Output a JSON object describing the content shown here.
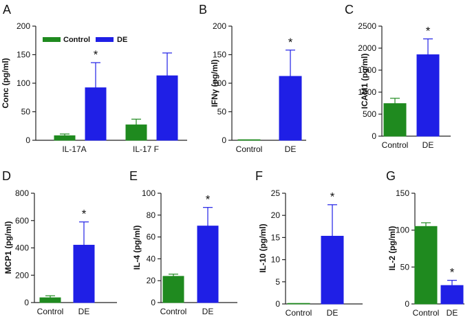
{
  "colors": {
    "control": "#1f8a1f",
    "de": "#1f1fe6"
  },
  "legend": {
    "control_label": "Control",
    "de_label": "DE"
  },
  "chart_data": [
    {
      "panel": "A",
      "type": "bar",
      "ylabel": "Conc (pg/ml)",
      "ylim": [
        0,
        200
      ],
      "yticks": [
        0,
        50,
        100,
        150,
        200
      ],
      "categories": [
        "IL-17A",
        "IL-17 F"
      ],
      "series": [
        {
          "name": "Control",
          "values": [
            8,
            27
          ],
          "errors": [
            3,
            10
          ]
        },
        {
          "name": "DE",
          "values": [
            92,
            113
          ],
          "errors": [
            44,
            40
          ]
        }
      ],
      "annotations": [
        {
          "text": "*",
          "category": 0,
          "series": 1
        }
      ]
    },
    {
      "panel": "B",
      "type": "bar",
      "ylabel": "IFNγ (pg/ml)",
      "ylim": [
        0,
        200
      ],
      "yticks": [
        0,
        50,
        100,
        150,
        200
      ],
      "categories": [
        "Control",
        "DE"
      ],
      "values": [
        1,
        112
      ],
      "errors": [
        0,
        46
      ],
      "annotations": [
        {
          "text": "*",
          "index": 1
        }
      ]
    },
    {
      "panel": "C",
      "type": "bar",
      "ylabel": "ICAM1 (pg/ml)",
      "ylim": [
        0,
        2500
      ],
      "yticks": [
        0,
        500,
        1000,
        1500,
        2000,
        2500
      ],
      "categories": [
        "Control",
        "DE"
      ],
      "values": [
        740,
        1850
      ],
      "errors": [
        120,
        360
      ],
      "annotations": [
        {
          "text": "*",
          "index": 1
        }
      ]
    },
    {
      "panel": "D",
      "type": "bar",
      "ylabel": "MCP1 (pg/ml)",
      "ylim": [
        0,
        800
      ],
      "yticks": [
        0,
        200,
        400,
        600,
        800
      ],
      "categories": [
        "Control",
        "DE"
      ],
      "values": [
        35,
        420
      ],
      "errors": [
        15,
        170
      ],
      "annotations": [
        {
          "text": "*",
          "index": 1
        }
      ]
    },
    {
      "panel": "E",
      "type": "bar",
      "ylabel": "IL-4 (pg/ml)",
      "ylim": [
        0,
        100
      ],
      "yticks": [
        0,
        20,
        40,
        60,
        80,
        100
      ],
      "categories": [
        "Control",
        "DE"
      ],
      "values": [
        24,
        70
      ],
      "errors": [
        2,
        17
      ],
      "annotations": [
        {
          "text": "*",
          "index": 1
        }
      ]
    },
    {
      "panel": "F",
      "type": "bar",
      "ylabel": "IL-10 (pg/ml)",
      "ylim": [
        0,
        25
      ],
      "yticks": [
        0,
        5,
        10,
        15,
        20,
        25
      ],
      "categories": [
        "Control",
        "DE"
      ],
      "values": [
        0,
        15.3
      ],
      "errors": [
        0,
        7.1
      ],
      "annotations": [
        {
          "text": "*",
          "index": 1
        }
      ]
    },
    {
      "panel": "G",
      "type": "bar",
      "ylabel": "IL-2 (pg/ml)",
      "ylim": [
        0,
        150
      ],
      "yticks": [
        0,
        50,
        100,
        150
      ],
      "categories": [
        "Control",
        "DE"
      ],
      "values": [
        105,
        25
      ],
      "errors": [
        5,
        7
      ],
      "annotations": [
        {
          "text": "*",
          "index": 1
        }
      ]
    }
  ]
}
